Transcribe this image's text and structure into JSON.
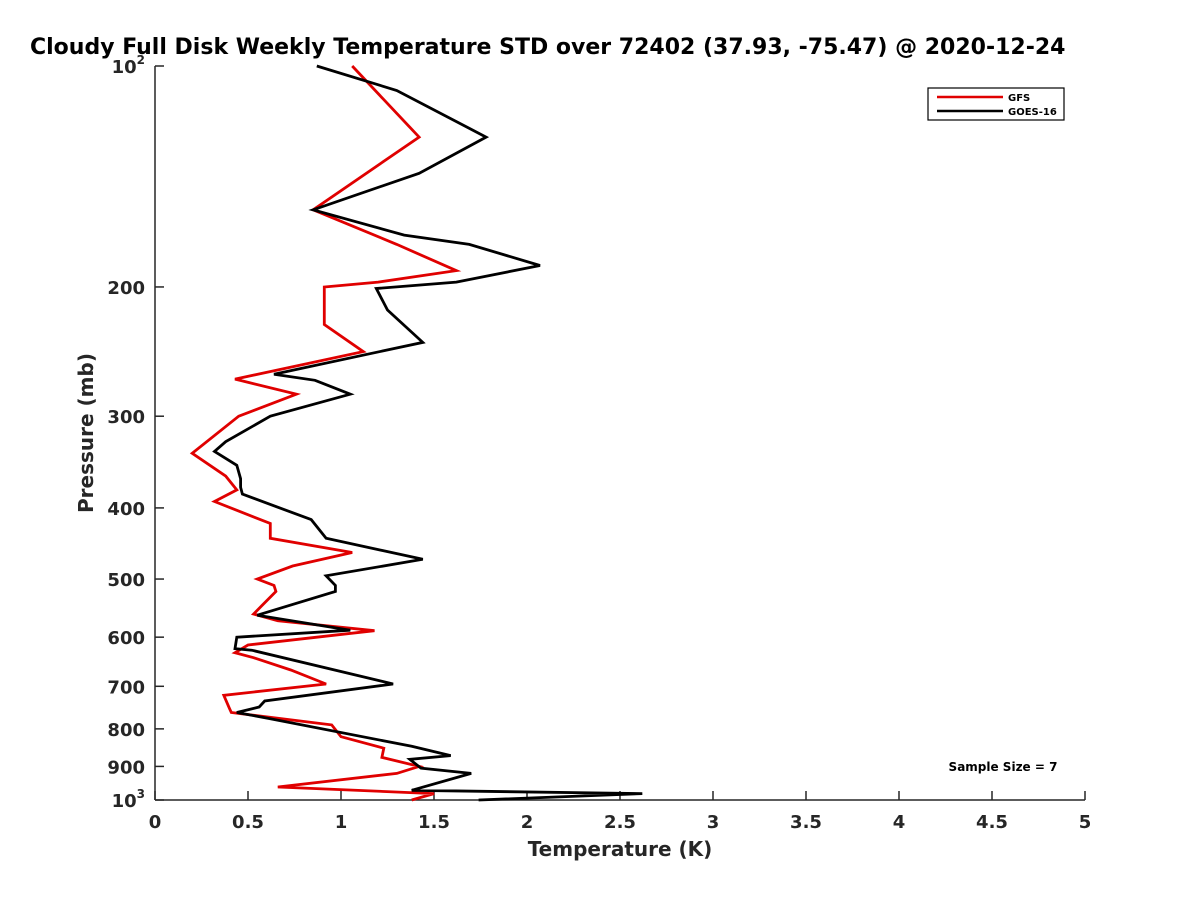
{
  "chart_data": {
    "type": "line",
    "title": "Cloudy Full Disk Weekly Temperature STD over 72402 (37.93, -75.47) @ 2020-12-24",
    "xlabel": "Temperature (K)",
    "ylabel": "Pressure (mb)",
    "xlim": [
      0,
      5
    ],
    "ylim": [
      100,
      1000
    ],
    "yscale": "log",
    "y_reversed": true,
    "grid": false,
    "legend_position": "top-right",
    "x_ticks": [
      "0",
      "0.5",
      "1",
      "1.5",
      "2",
      "2.5",
      "3",
      "3.5",
      "4",
      "4.5",
      "5"
    ],
    "y_ticks": [
      {
        "value": 100,
        "base": "10",
        "exp": "2"
      },
      {
        "value": 200,
        "label": "200"
      },
      {
        "value": 300,
        "label": "300"
      },
      {
        "value": 400,
        "label": "400"
      },
      {
        "value": 500,
        "label": "500"
      },
      {
        "value": 600,
        "label": "600"
      },
      {
        "value": 700,
        "label": "700"
      },
      {
        "value": 800,
        "label": "800"
      },
      {
        "value": 900,
        "label": "900"
      },
      {
        "value": 1000,
        "base": "10",
        "exp": "3"
      }
    ],
    "annotation": "Sample Size = 7",
    "series": [
      {
        "name": "GFS",
        "color": "#e00000",
        "points": [
          [
            1.06,
            100
          ],
          [
            1.42,
            125
          ],
          [
            0.85,
            157
          ],
          [
            1.3,
            175
          ],
          [
            1.62,
            190
          ],
          [
            1.2,
            197
          ],
          [
            0.91,
            200
          ],
          [
            0.91,
            225
          ],
          [
            1.12,
            245
          ],
          [
            0.43,
            267
          ],
          [
            0.76,
            280
          ],
          [
            0.45,
            300
          ],
          [
            0.2,
            337
          ],
          [
            0.38,
            362
          ],
          [
            0.44,
            378
          ],
          [
            0.32,
            392
          ],
          [
            0.62,
            420
          ],
          [
            0.62,
            440
          ],
          [
            1.06,
            460
          ],
          [
            0.74,
            480
          ],
          [
            0.55,
            500
          ],
          [
            0.64,
            510
          ],
          [
            0.65,
            520
          ],
          [
            0.57,
            545
          ],
          [
            0.53,
            558
          ],
          [
            0.66,
            570
          ],
          [
            1.18,
            588
          ],
          [
            0.87,
            600
          ],
          [
            0.5,
            615
          ],
          [
            0.43,
            630
          ],
          [
            0.53,
            640
          ],
          [
            0.73,
            665
          ],
          [
            0.92,
            695
          ],
          [
            0.37,
            720
          ],
          [
            0.4,
            750
          ],
          [
            0.41,
            760
          ],
          [
            0.95,
            790
          ],
          [
            1.0,
            820
          ],
          [
            1.23,
            850
          ],
          [
            1.22,
            875
          ],
          [
            1.42,
            900
          ],
          [
            1.3,
            920
          ],
          [
            0.66,
            960
          ],
          [
            1.5,
            980
          ],
          [
            1.38,
            1000
          ]
        ]
      },
      {
        "name": "GOES-16",
        "color": "#000000",
        "points": [
          [
            0.87,
            100
          ],
          [
            1.3,
            108
          ],
          [
            1.78,
            125
          ],
          [
            1.42,
            140
          ],
          [
            0.85,
            157
          ],
          [
            1.34,
            170
          ],
          [
            1.69,
            175
          ],
          [
            2.07,
            187
          ],
          [
            1.62,
            197
          ],
          [
            1.19,
            201
          ],
          [
            1.25,
            215
          ],
          [
            1.44,
            238
          ],
          [
            0.64,
            263
          ],
          [
            0.86,
            268
          ],
          [
            1.05,
            280
          ],
          [
            0.62,
            300
          ],
          [
            0.38,
            325
          ],
          [
            0.32,
            335
          ],
          [
            0.44,
            350
          ],
          [
            0.46,
            365
          ],
          [
            0.46,
            375
          ],
          [
            0.47,
            383
          ],
          [
            0.84,
            415
          ],
          [
            0.92,
            440
          ],
          [
            1.44,
            470
          ],
          [
            0.92,
            495
          ],
          [
            0.97,
            510
          ],
          [
            0.97,
            520
          ],
          [
            0.55,
            560
          ],
          [
            1.05,
            587
          ],
          [
            0.44,
            600
          ],
          [
            0.43,
            622
          ],
          [
            0.52,
            625
          ],
          [
            1.28,
            695
          ],
          [
            0.59,
            733
          ],
          [
            0.56,
            747
          ],
          [
            0.44,
            760
          ],
          [
            0.62,
            775
          ],
          [
            1.38,
            845
          ],
          [
            1.59,
            870
          ],
          [
            1.37,
            880
          ],
          [
            1.43,
            905
          ],
          [
            1.7,
            920
          ],
          [
            1.38,
            970
          ],
          [
            2.62,
            980
          ],
          [
            1.74,
            1000
          ]
        ]
      }
    ]
  }
}
